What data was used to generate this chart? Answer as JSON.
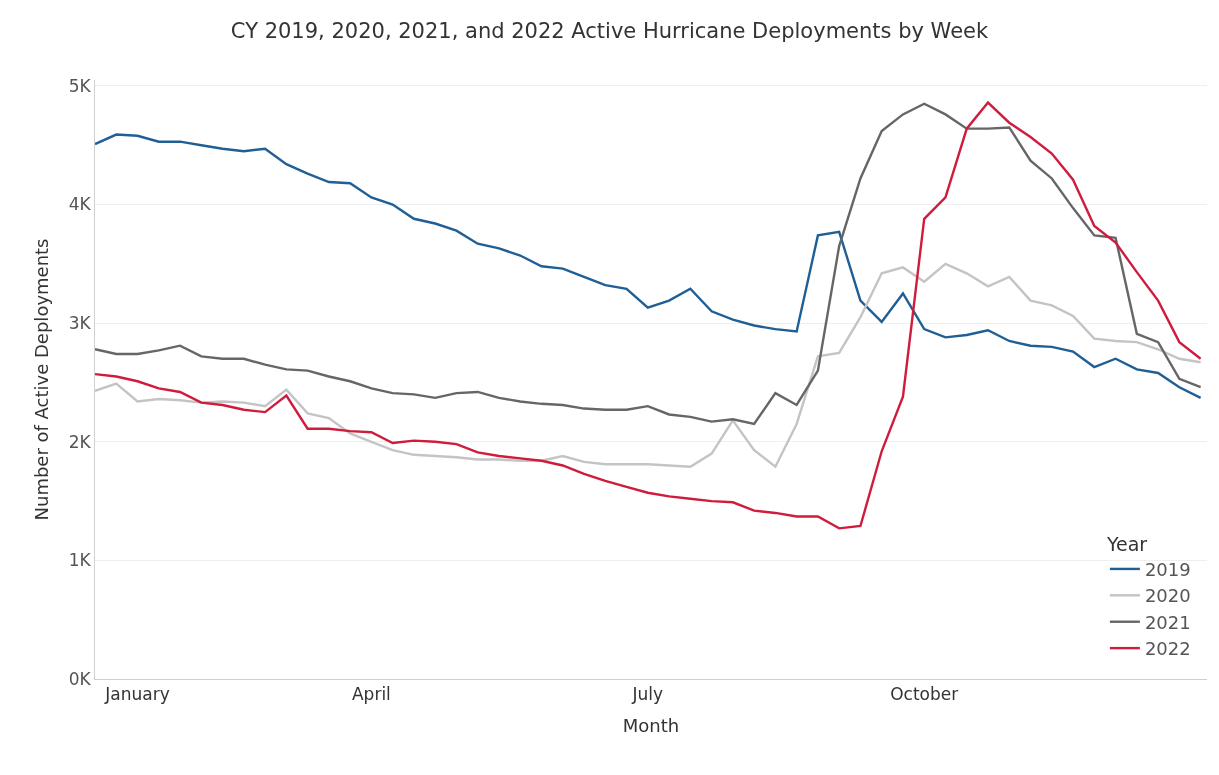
{
  "chart_data": {
    "type": "line",
    "title": "CY 2019, 2020, 2021, and 2022 Active Hurricane Deployments by Week",
    "xlabel": "Month",
    "ylabel": "Number of Active Deployments",
    "legend_title": "Year",
    "categories": [
      null,
      null,
      "January",
      null,
      null,
      null,
      null,
      null,
      null,
      null,
      null,
      null,
      null,
      "April",
      null,
      null,
      null,
      null,
      null,
      null,
      null,
      null,
      null,
      null,
      null,
      null,
      "July",
      null,
      null,
      null,
      null,
      null,
      null,
      null,
      null,
      null,
      null,
      null,
      null,
      "October",
      null,
      null,
      null,
      null,
      null,
      null,
      null,
      null,
      null,
      null,
      null,
      null,
      null
    ],
    "series": [
      {
        "name": "2019",
        "color": "#1f5f96",
        "values": [
          4510,
          4590,
          4580,
          4530,
          4530,
          4500,
          4470,
          4450,
          4470,
          4340,
          4260,
          4190,
          4180,
          4060,
          4000,
          3880,
          3840,
          3780,
          3670,
          3630,
          3570,
          3480,
          3460,
          3390,
          3320,
          3290,
          3130,
          3190,
          3290,
          3100,
          3030,
          2980,
          2950,
          2930,
          3740,
          3770,
          3190,
          3010,
          3250,
          2950,
          2880,
          2900,
          2940,
          2850,
          2810,
          2800,
          2760,
          2630,
          2700,
          2610,
          2580,
          2460,
          2370
        ]
      },
      {
        "name": "2020",
        "color": "#c4c4c4",
        "values": [
          2430,
          2490,
          2340,
          2360,
          2350,
          2330,
          2340,
          2330,
          2300,
          2440,
          2240,
          2200,
          2070,
          2000,
          1930,
          1890,
          1880,
          1870,
          1850,
          1850,
          1840,
          1840,
          1880,
          1830,
          1810,
          1810,
          1810,
          1800,
          1790,
          1900,
          2180,
          1930,
          1790,
          2150,
          2720,
          2750,
          3050,
          3420,
          3470,
          3350,
          3500,
          3420,
          3310,
          3390,
          3190,
          3150,
          3060,
          2870,
          2850,
          2840,
          2780,
          2700,
          2670
        ]
      },
      {
        "name": "2021",
        "color": "#666666",
        "values": [
          2780,
          2740,
          2740,
          2770,
          2810,
          2720,
          2700,
          2700,
          2650,
          2610,
          2600,
          2550,
          2510,
          2450,
          2410,
          2400,
          2370,
          2410,
          2420,
          2370,
          2340,
          2320,
          2310,
          2280,
          2270,
          2270,
          2300,
          2230,
          2210,
          2170,
          2190,
          2150,
          2410,
          2310,
          2600,
          3650,
          4220,
          4620,
          4760,
          4850,
          4760,
          4640,
          4640,
          4650,
          4370,
          4220,
          3970,
          3740,
          3720,
          2910,
          2840,
          2530,
          2460
        ]
      },
      {
        "name": "2022",
        "color": "#d01c3c",
        "values": [
          2570,
          2550,
          2510,
          2450,
          2420,
          2330,
          2310,
          2270,
          2250,
          2390,
          2110,
          2110,
          2090,
          2080,
          1990,
          2010,
          2000,
          1980,
          1910,
          1880,
          1860,
          1840,
          1800,
          1730,
          1670,
          1620,
          1570,
          1540,
          1520,
          1500,
          1490,
          1420,
          1400,
          1370,
          1370,
          1270,
          1290,
          1920,
          2380,
          3880,
          4060,
          4640,
          4860,
          4690,
          4570,
          4430,
          4210,
          3820,
          3680,
          3430,
          3190,
          2840,
          2700
        ]
      }
    ],
    "ylim": [
      0,
      5050
    ],
    "yticks": [
      {
        "value": 0,
        "label": "0K"
      },
      {
        "value": 1000,
        "label": "1K"
      },
      {
        "value": 2000,
        "label": "2K"
      },
      {
        "value": 3000,
        "label": "3K"
      },
      {
        "value": 4000,
        "label": "4K"
      },
      {
        "value": 5000,
        "label": "5K"
      }
    ],
    "grid": "y",
    "legend": "bottom right",
    "marker": "none",
    "line_style": "solid"
  }
}
